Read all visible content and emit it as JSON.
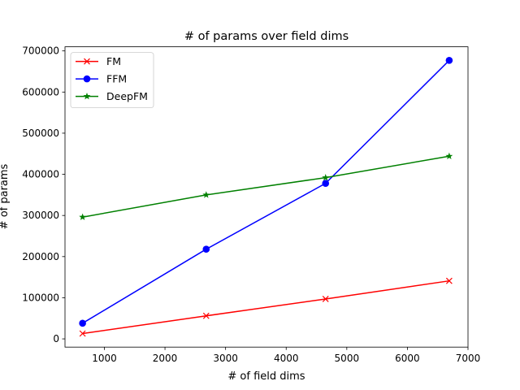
{
  "chart_data": {
    "type": "line",
    "title": "# of params over field dims",
    "xlabel": "# of field dims",
    "ylabel": "# of params",
    "xlim": [
      350,
      7000
    ],
    "ylim": [
      -20000,
      710000
    ],
    "xticks": [
      1000,
      2000,
      3000,
      4000,
      5000,
      6000,
      7000
    ],
    "yticks": [
      0,
      100000,
      200000,
      300000,
      400000,
      500000,
      600000,
      700000
    ],
    "xtick_labels": [
      "1000",
      "2000",
      "3000",
      "4000",
      "5000",
      "6000",
      "7000"
    ],
    "ytick_labels": [
      "0",
      "100000",
      "200000",
      "300000",
      "400000",
      "500000",
      "600000",
      "700000"
    ],
    "legend_position": "top-left",
    "grid": false,
    "x": [
      640,
      2680,
      4650,
      6690
    ],
    "series": [
      {
        "name": "FM",
        "color": "#ff0000",
        "marker": "x",
        "values": [
          13000,
          56000,
          97000,
          141000
        ]
      },
      {
        "name": "FFM",
        "color": "#0000ff",
        "marker": "circle",
        "values": [
          38000,
          218000,
          378000,
          677000
        ]
      },
      {
        "name": "DeepFM",
        "color": "#008000",
        "marker": "star",
        "values": [
          296000,
          350000,
          392000,
          444000
        ]
      }
    ]
  }
}
